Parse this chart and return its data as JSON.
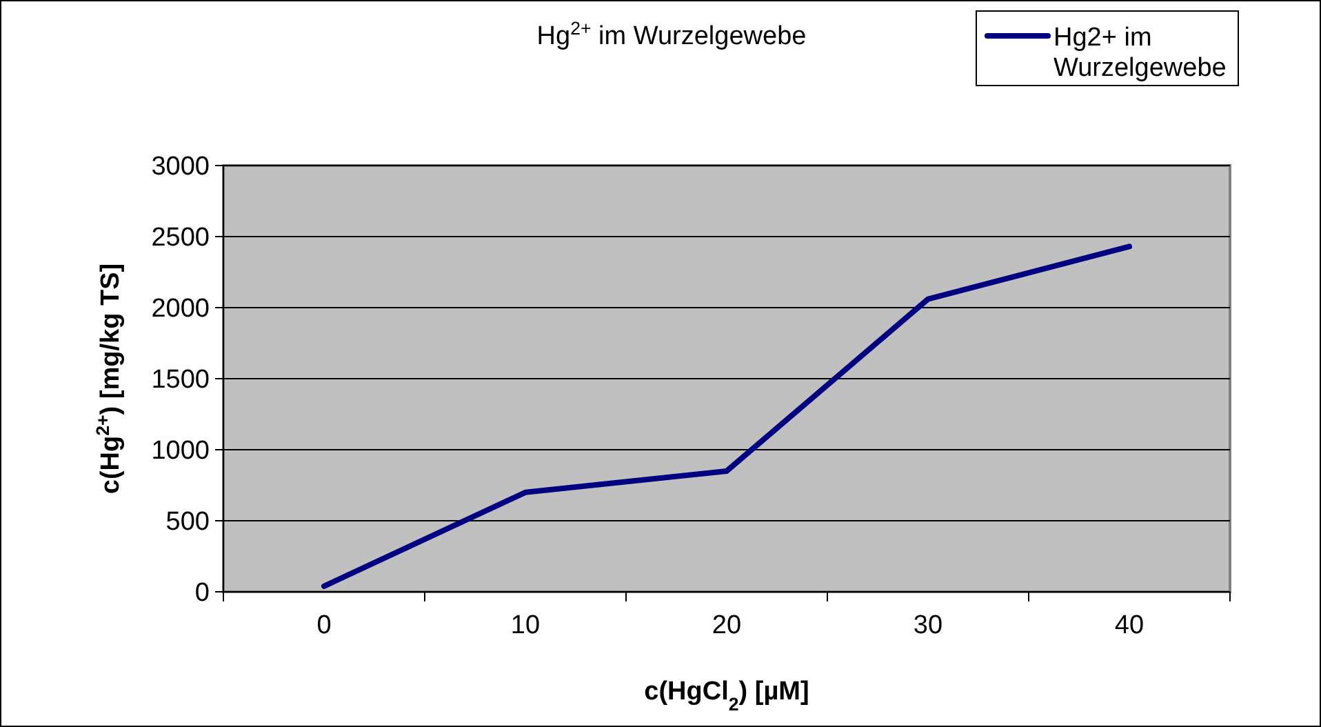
{
  "chart_data": {
    "type": "line",
    "title": "Hg$^{2+}$ im Wurzelgewebe",
    "xlabel": "c(HgCl$_{2}$) [µM]",
    "ylabel": "c(Hg$^{2+}$) [mg/kg TS]",
    "categories": [
      "0",
      "10",
      "20",
      "30",
      "40"
    ],
    "series": [
      {
        "name": "Hg2+ im Wurzelgewebe",
        "color": "#000080",
        "values": [
          40,
          700,
          850,
          2060,
          2430
        ]
      }
    ],
    "ylim": [
      0,
      3000
    ],
    "yticks": [
      0,
      500,
      1000,
      1500,
      2000,
      2500,
      3000
    ],
    "grid": "y",
    "legend": "top right",
    "marker": "none",
    "line_style": "solid"
  }
}
